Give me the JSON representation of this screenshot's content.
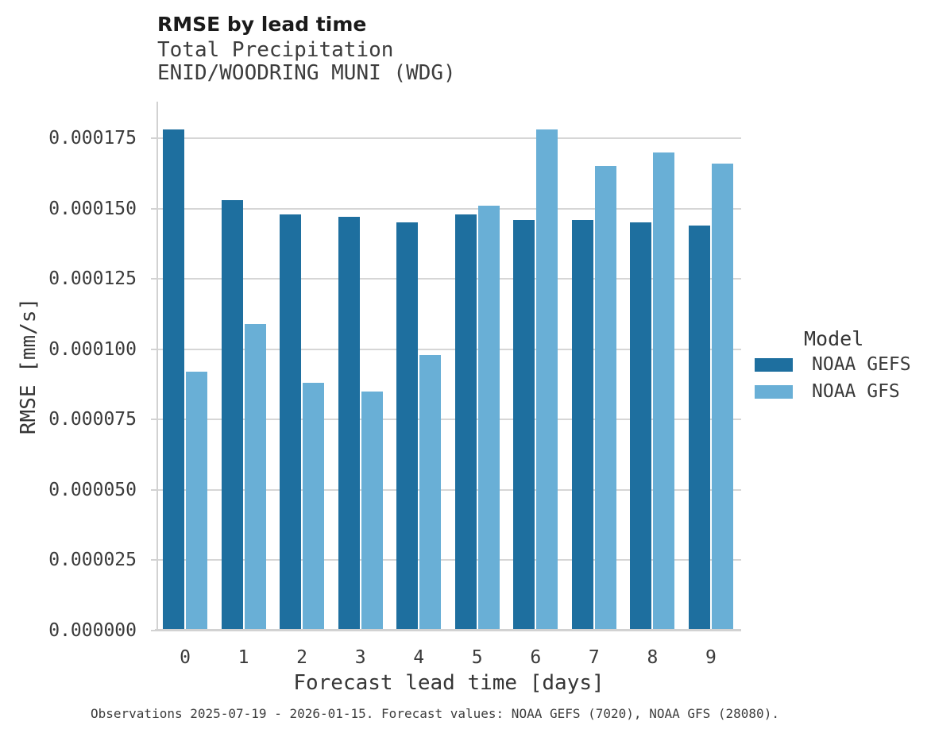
{
  "caption": "Observations 2025-07-19 - 2026-01-15. Forecast values: NOAA GEFS (7020), NOAA GFS (28080).",
  "colors": {
    "gefs_dark_blue": "#1e6f9f",
    "gfs_light_blue": "#69afd6",
    "gridline": "#d6d6d6",
    "axis": "#d2d2d2"
  },
  "chart_data": {
    "type": "bar",
    "title": "RMSE by lead time",
    "subtitle": [
      "Total Precipitation",
      "ENID/WOODRING MUNI (WDG)"
    ],
    "xlabel": "Forecast lead time [days]",
    "ylabel": "RMSE [mm/s]",
    "categories": [
      "0",
      "1",
      "2",
      "3",
      "4",
      "5",
      "6",
      "7",
      "8",
      "9"
    ],
    "series": [
      {
        "name": "NOAA GEFS",
        "color": "#1e6f9f",
        "values": [
          0.000178,
          0.000153,
          0.000148,
          0.000147,
          0.000145,
          0.000148,
          0.000146,
          0.000146,
          0.000145,
          0.000144
        ]
      },
      {
        "name": "NOAA GFS",
        "color": "#69afd6",
        "values": [
          9.2e-05,
          0.000109,
          8.8e-05,
          8.5e-05,
          9.8e-05,
          0.000151,
          0.000178,
          0.000165,
          0.00017,
          0.000166
        ]
      }
    ],
    "ylim": [
      0,
      0.000175
    ],
    "grid": true,
    "legend_position": "right",
    "legend_title": "Model",
    "yticks": [
      {
        "label": "0.000000",
        "value": 0.0
      },
      {
        "label": "0.000025",
        "value": 2.5e-05
      },
      {
        "label": "0.000050",
        "value": 5e-05
      },
      {
        "label": "0.000075",
        "value": 7.5e-05
      },
      {
        "label": "0.000100",
        "value": 0.0001
      },
      {
        "label": "0.000125",
        "value": 0.000125
      },
      {
        "label": "0.000150",
        "value": 0.00015
      },
      {
        "label": "0.000175",
        "value": 0.000175
      }
    ]
  }
}
